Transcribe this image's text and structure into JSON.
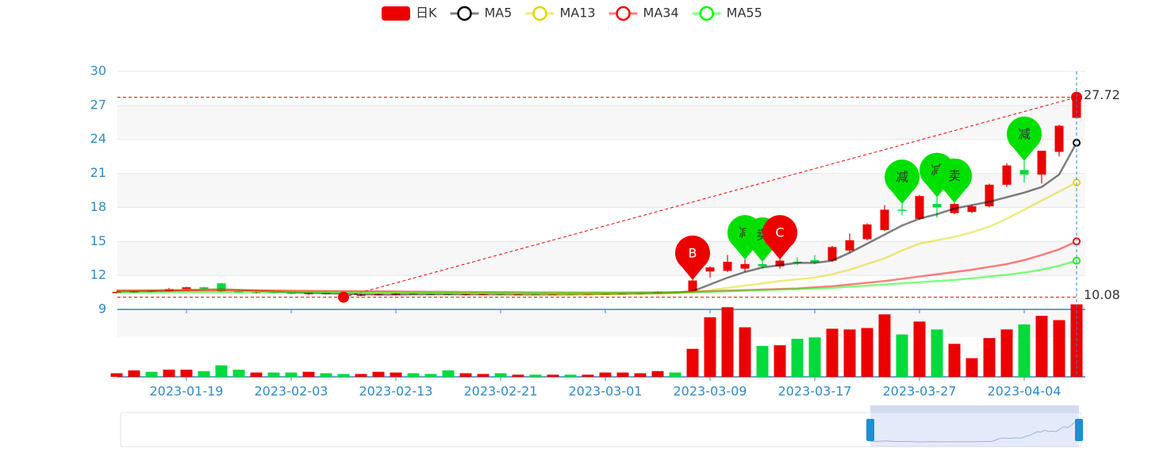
{
  "chart_data": {
    "type": "candlestick",
    "categories": [
      null,
      null,
      null,
      null,
      "2023-01-19",
      null,
      null,
      null,
      null,
      null,
      "2023-02-03",
      null,
      null,
      null,
      null,
      null,
      "2023-02-13",
      null,
      null,
      null,
      null,
      null,
      "2023-02-21",
      null,
      null,
      null,
      null,
      null,
      "2023-03-01",
      null,
      null,
      null,
      null,
      null,
      "2023-03-09",
      null,
      null,
      null,
      null,
      null,
      "2023-03-17",
      null,
      null,
      null,
      null,
      null,
      "2023-03-27",
      null,
      null,
      null,
      null,
      null,
      "2023-04-04",
      null,
      null,
      null
    ],
    "ylim": [
      9,
      30
    ],
    "yticks": [
      9,
      12,
      15,
      18,
      21,
      24,
      27,
      30
    ],
    "up_color": "#ec0000",
    "down_color": "#00da3c",
    "series": [
      {
        "name": "日K",
        "type": "candlestick",
        "color": "#ec0000",
        "values": [
          [
            10.45,
            10.55,
            10.4,
            10.6
          ],
          [
            10.5,
            10.6,
            10.45,
            10.7
          ],
          [
            10.65,
            10.55,
            10.5,
            10.7
          ],
          [
            10.6,
            10.8,
            10.55,
            10.9
          ],
          [
            10.75,
            10.95,
            10.7,
            11.0
          ],
          [
            10.95,
            10.8,
            10.7,
            11.0
          ],
          [
            11.3,
            10.6,
            10.5,
            11.35
          ],
          [
            10.6,
            10.5,
            10.45,
            10.65
          ],
          [
            10.45,
            10.5,
            10.4,
            10.55
          ],
          [
            10.5,
            10.45,
            10.4,
            10.55
          ],
          [
            10.45,
            10.4,
            10.35,
            10.5
          ],
          [
            10.35,
            10.45,
            10.3,
            10.5
          ],
          [
            10.45,
            10.35,
            10.3,
            10.5
          ],
          [
            10.3,
            10.2,
            10.08,
            10.35
          ],
          [
            10.2,
            10.3,
            10.15,
            10.35
          ],
          [
            10.3,
            10.35,
            10.25,
            10.4
          ],
          [
            10.3,
            10.4,
            10.25,
            10.45
          ],
          [
            10.4,
            10.35,
            10.3,
            10.45
          ],
          [
            10.35,
            10.3,
            10.25,
            10.4
          ],
          [
            10.35,
            10.3,
            10.25,
            10.4
          ],
          [
            10.3,
            10.35,
            10.25,
            10.4
          ],
          [
            10.3,
            10.35,
            10.28,
            10.4
          ],
          [
            10.35,
            10.3,
            10.25,
            10.38
          ],
          [
            10.3,
            10.33,
            10.28,
            10.36
          ],
          [
            10.33,
            10.3,
            10.27,
            10.36
          ],
          [
            10.3,
            10.33,
            10.28,
            10.36
          ],
          [
            10.33,
            10.3,
            10.27,
            10.36
          ],
          [
            10.3,
            10.35,
            10.28,
            10.38
          ],
          [
            10.33,
            10.38,
            10.3,
            10.4
          ],
          [
            10.35,
            10.4,
            10.32,
            10.42
          ],
          [
            10.35,
            10.45,
            10.33,
            10.48
          ],
          [
            10.4,
            10.55,
            10.35,
            10.6
          ],
          [
            10.55,
            10.5,
            10.45,
            10.6
          ],
          [
            10.6,
            11.55,
            10.55,
            11.6
          ],
          [
            12.35,
            12.7,
            11.8,
            12.8
          ],
          [
            12.4,
            13.2,
            12.3,
            13.8
          ],
          [
            12.6,
            13.0,
            12.3,
            13.4
          ],
          [
            13.0,
            12.8,
            12.6,
            13.2
          ],
          [
            12.8,
            13.3,
            12.6,
            13.4
          ],
          [
            13.2,
            13.1,
            12.9,
            13.6
          ],
          [
            13.35,
            13.15,
            13.0,
            13.8
          ],
          [
            13.3,
            14.5,
            13.2,
            14.6
          ],
          [
            14.2,
            15.1,
            14.0,
            15.7
          ],
          [
            15.2,
            16.5,
            15.1,
            16.6
          ],
          [
            16.0,
            17.8,
            15.9,
            18.2
          ],
          [
            17.8,
            17.7,
            17.3,
            18.3
          ],
          [
            17.0,
            19.0,
            16.9,
            19.1
          ],
          [
            18.3,
            18.0,
            17.1,
            18.9
          ],
          [
            17.5,
            18.3,
            17.4,
            18.4
          ],
          [
            17.6,
            18.1,
            17.5,
            18.2
          ],
          [
            18.1,
            20.0,
            18.0,
            20.1
          ],
          [
            20.0,
            21.7,
            19.8,
            21.9
          ],
          [
            21.3,
            20.9,
            20.2,
            22.1
          ],
          [
            20.9,
            23.0,
            20.1,
            23.0
          ],
          [
            22.9,
            25.2,
            22.5,
            25.3
          ],
          [
            25.9,
            27.72,
            25.9,
            27.72
          ]
        ]
      },
      {
        "name": "MA5",
        "color": "#000000",
        "values": [
          10.6,
          10.6,
          10.62,
          10.65,
          10.7,
          10.75,
          10.78,
          10.72,
          10.65,
          10.58,
          10.5,
          10.45,
          10.42,
          10.38,
          10.33,
          10.3,
          10.3,
          10.32,
          10.33,
          10.33,
          10.32,
          10.32,
          10.32,
          10.31,
          10.31,
          10.31,
          10.32,
          10.33,
          10.35,
          10.37,
          10.4,
          10.43,
          10.46,
          10.6,
          11.2,
          11.8,
          12.3,
          12.7,
          12.9,
          13.1,
          13.1,
          13.3,
          14.0,
          14.8,
          15.6,
          16.4,
          17.0,
          17.4,
          17.9,
          18.2,
          18.5,
          18.9,
          19.3,
          19.8,
          20.9,
          23.7
        ]
      },
      {
        "name": "MA13",
        "color": "#e0d600",
        "values": [
          10.7,
          10.7,
          10.72,
          10.73,
          10.74,
          10.75,
          10.75,
          10.73,
          10.7,
          10.68,
          10.65,
          10.62,
          10.6,
          10.57,
          10.55,
          10.52,
          10.5,
          10.48,
          10.46,
          10.45,
          10.43,
          10.42,
          10.4,
          10.38,
          10.37,
          10.36,
          10.35,
          10.35,
          10.35,
          10.36,
          10.38,
          10.4,
          10.45,
          10.55,
          10.7,
          10.9,
          11.1,
          11.3,
          11.5,
          11.65,
          11.8,
          12.1,
          12.5,
          13.0,
          13.5,
          14.2,
          14.8,
          15.1,
          15.4,
          15.8,
          16.3,
          17.0,
          17.8,
          18.6,
          19.4,
          20.2
        ]
      },
      {
        "name": "MA34",
        "color": "#ff0000",
        "values": [
          10.65,
          10.65,
          10.66,
          10.66,
          10.67,
          10.67,
          10.67,
          10.66,
          10.66,
          10.65,
          10.64,
          10.63,
          10.62,
          10.61,
          10.6,
          10.59,
          10.58,
          10.57,
          10.56,
          10.55,
          10.54,
          10.53,
          10.52,
          10.51,
          10.5,
          10.5,
          10.49,
          10.49,
          10.49,
          10.49,
          10.5,
          10.5,
          10.52,
          10.55,
          10.6,
          10.65,
          10.7,
          10.75,
          10.8,
          10.85,
          10.95,
          11.05,
          11.2,
          11.35,
          11.5,
          11.7,
          11.9,
          12.1,
          12.3,
          12.5,
          12.75,
          13.0,
          13.35,
          13.8,
          14.3,
          15.0
        ]
      },
      {
        "name": "MA55",
        "color": "#00ff00",
        "values": [
          10.5,
          10.5,
          10.5,
          10.51,
          10.51,
          10.52,
          10.52,
          10.52,
          10.52,
          10.52,
          10.51,
          10.51,
          10.51,
          10.5,
          10.5,
          10.5,
          10.49,
          10.49,
          10.49,
          10.48,
          10.48,
          10.48,
          10.47,
          10.47,
          10.47,
          10.46,
          10.46,
          10.46,
          10.46,
          10.46,
          10.47,
          10.47,
          10.48,
          10.5,
          10.55,
          10.6,
          10.65,
          10.7,
          10.75,
          10.8,
          10.85,
          10.9,
          11.0,
          11.1,
          11.2,
          11.3,
          11.4,
          11.5,
          11.6,
          11.75,
          11.9,
          12.05,
          12.25,
          12.5,
          12.85,
          13.3
        ]
      }
    ],
    "volume": [
      5,
      9,
      7,
      10,
      10,
      8,
      16,
      10,
      6,
      6,
      6,
      7,
      5,
      4,
      4,
      7,
      6,
      5,
      4,
      9,
      5,
      4,
      5,
      3,
      3,
      3,
      3,
      3,
      6,
      6,
      5,
      8,
      6,
      39,
      83,
      97,
      69,
      43,
      44,
      53,
      55,
      67,
      66,
      68,
      87,
      59,
      77,
      66,
      46,
      26,
      54,
      66,
      73,
      85,
      79,
      101
    ],
    "volume_ylim": [
      0,
      105
    ],
    "max": 27.72,
    "min": 10.08,
    "markers": [
      {
        "index": 33,
        "label": "B",
        "color": "#ec0000"
      },
      {
        "index": 36,
        "label": "减",
        "color": "#00e000"
      },
      {
        "index": 37,
        "label": "卖",
        "color": "#00e000"
      },
      {
        "index": 38,
        "label": "C",
        "color": "#ec0000"
      },
      {
        "index": 45,
        "label": "减",
        "color": "#00e000"
      },
      {
        "index": 47,
        "label": "减",
        "color": "#00e000"
      },
      {
        "index": 48,
        "label": "卖",
        "color": "#00e000"
      },
      {
        "index": 52,
        "label": "减",
        "color": "#00e000"
      }
    ],
    "grid": true
  }
}
